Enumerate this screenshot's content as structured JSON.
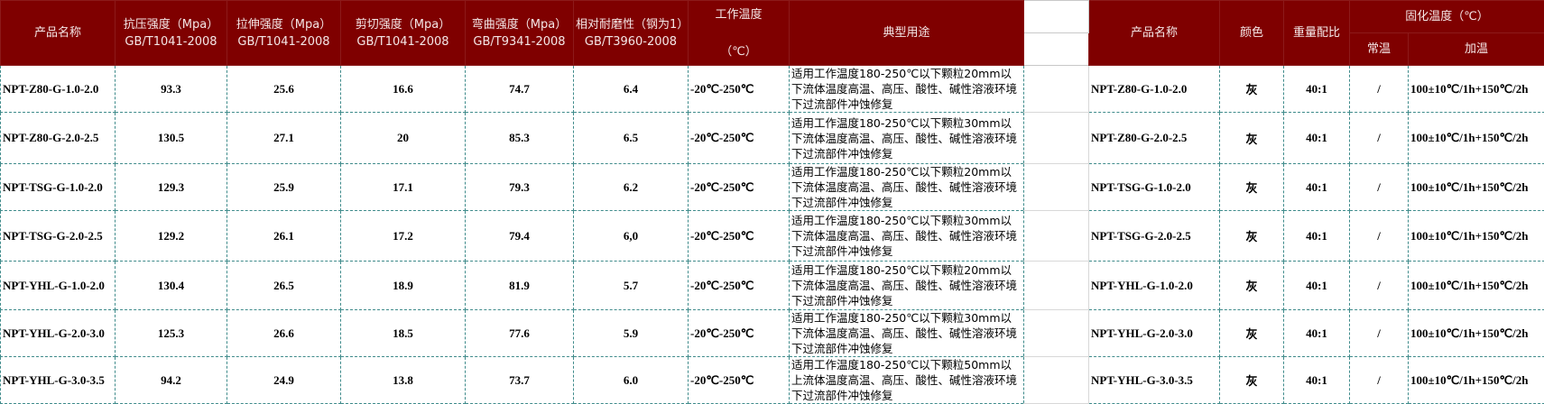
{
  "colors": {
    "header_bg": "#7f0000",
    "header_text": "#f4e6e6",
    "grid": "#3f8b8b"
  },
  "header": {
    "product_name": "产品名称",
    "compressive_line1": "抗压强度（Mpa）",
    "compressive_line2": "GB/T1041-2008",
    "tensile_line1": "拉伸强度（Mpa）",
    "tensile_line2": "GB/T1041-2008",
    "shear_line1": "剪切强度（Mpa）",
    "shear_line2": "GB/T1041-2008",
    "flexural_line1": "弯曲强度（Mpa）",
    "flexural_line2": "GB/T9341-2008",
    "wear_line1": "相对耐磨性（钢为1）",
    "wear_line2": "GB/T3960-2008",
    "work_temp_line1": "工作温度",
    "work_temp_line2": "（℃）",
    "typical_use": "典型用途",
    "product_name_2": "产品名称",
    "color": "颜色",
    "weight_ratio": "重量配比",
    "cure_temp": "固化温度（℃）",
    "room_temp": "常温",
    "heated": "加温"
  },
  "rows": [
    {
      "name": "NPT-Z80-G-1.0-2.0",
      "compressive": "93.3",
      "tensile": "25.6",
      "shear": "16.6",
      "flexural": "74.7",
      "wear": "6.4",
      "work_temp": "-20℃-250℃",
      "use": "适用工作温度180-250℃以下颗粒20mm以下流体温度高温、高压、酸性、碱性溶液环境下过流部件冲蚀修复",
      "name2": "NPT-Z80-G-1.0-2.0",
      "color": "灰",
      "ratio": "40:1",
      "room": "/",
      "heated": "100±10℃/1h+150℃/2h"
    },
    {
      "name": "NPT-Z80-G-2.0-2.5",
      "compressive": "130.5",
      "tensile": "27.1",
      "shear": "20",
      "flexural": "85.3",
      "wear": "6.5",
      "work_temp": "-20℃-250℃",
      "use": "适用工作温度180-250℃以下颗粒30mm以下流体温度高温、高压、酸性、碱性溶液环境下过流部件冲蚀修复",
      "name2": "NPT-Z80-G-2.0-2.5",
      "color": "灰",
      "ratio": "40:1",
      "room": "/",
      "heated": "100±10℃/1h+150℃/2h"
    },
    {
      "name": "NPT-TSG-G-1.0-2.0",
      "compressive": "129.3",
      "tensile": "25.9",
      "shear": "17.1",
      "flexural": "79.3",
      "wear": "6.2",
      "work_temp": "-20℃-250℃",
      "use": "适用工作温度180-250℃以下颗粒20mm以下流体温度高温、高压、酸性、碱性溶液环境下过流部件冲蚀修复",
      "name2": "NPT-TSG-G-1.0-2.0",
      "color": "灰",
      "ratio": "40:1",
      "room": "/",
      "heated": "100±10℃/1h+150℃/2h"
    },
    {
      "name": "NPT-TSG-G-2.0-2.5",
      "compressive": "129.2",
      "tensile": "26.1",
      "shear": "17.2",
      "flexural": "79.4",
      "wear": "6,0",
      "work_temp": "-20℃-250℃",
      "use": "适用工作温度180-250℃以下颗粒30mm以下流体温度高温、高压、酸性、碱性溶液环境下过流部件冲蚀修复",
      "name2": "NPT-TSG-G-2.0-2.5",
      "color": "灰",
      "ratio": "40:1",
      "room": "/",
      "heated": "100±10℃/1h+150℃/2h"
    },
    {
      "name": "NPT-YHL-G-1.0-2.0",
      "compressive": "130.4",
      "tensile": "26.5",
      "shear": "18.9",
      "flexural": "81.9",
      "wear": "5.7",
      "work_temp": "-20℃-250℃",
      "use": "适用工作温度180-250℃以下颗粒20mm以下流体温度高温、高压、酸性、碱性溶液环境下过流部件冲蚀修复",
      "name2": "NPT-YHL-G-1.0-2.0",
      "color": "灰",
      "ratio": "40:1",
      "room": "/",
      "heated": "100±10℃/1h+150℃/2h"
    },
    {
      "name": "NPT-YHL-G-2.0-3.0",
      "compressive": "125.3",
      "tensile": "26.6",
      "shear": "18.5",
      "flexural": "77.6",
      "wear": "5.9",
      "work_temp": "-20℃-250℃",
      "use": "适用工作温度180-250℃以下颗粒30mm以下流体温度高温、高压、酸性、碱性溶液环境下过流部件冲蚀修复",
      "name2": "NPT-YHL-G-2.0-3.0",
      "color": "灰",
      "ratio": "40:1",
      "room": "/",
      "heated": "100±10℃/1h+150℃/2h"
    },
    {
      "name": "NPT-YHL-G-3.0-3.5",
      "compressive": "94.2",
      "tensile": "24.9",
      "shear": "13.8",
      "flexural": "73.7",
      "wear": "6.0",
      "work_temp": "-20℃-250℃",
      "use": "适用工作温度180-250℃以下颗粒50mm以上流体温度高温、高压、酸性、碱性溶液环境下过流部件冲蚀修复",
      "name2": "NPT-YHL-G-3.0-3.5",
      "color": "灰",
      "ratio": "40:1",
      "room": "/",
      "heated": "100±10℃/1h+150℃/2h"
    }
  ]
}
